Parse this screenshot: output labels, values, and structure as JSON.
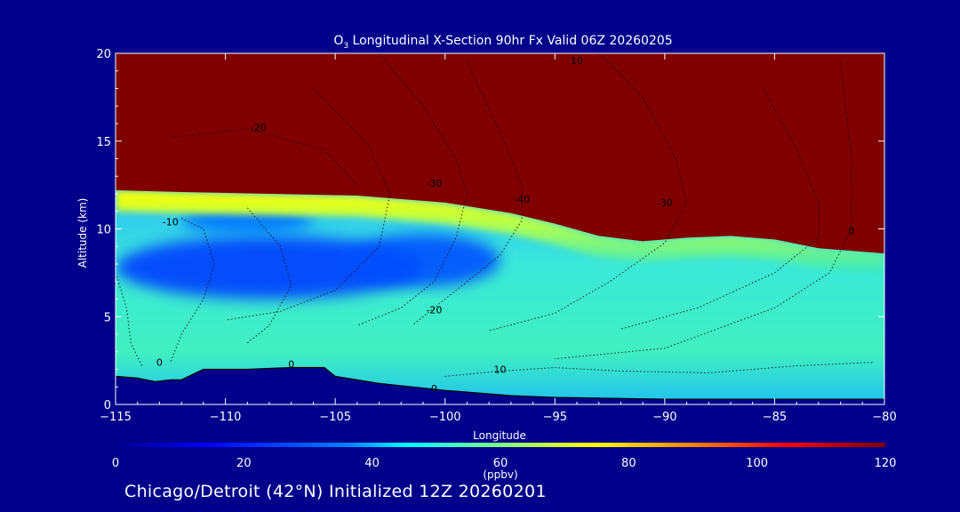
{
  "chart_data": {
    "type": "heatmap",
    "title_species": "O",
    "title_subscript": "3",
    "title_rest": " Longitudinal X-Section 90hr  Fx Valid 06Z 20260205",
    "xlabel": "Longitude",
    "ylabel": "Altitude (km)",
    "xlim": [
      -115,
      -80
    ],
    "ylim": [
      0,
      20
    ],
    "xticks": [
      -115,
      -110,
      -105,
      -100,
      -95,
      -90,
      -85,
      -80
    ],
    "xtick_labels": [
      "−115",
      "−110",
      "−105",
      "−100",
      "−95",
      "−90",
      "−85",
      "−80"
    ],
    "yticks": [
      0,
      5,
      10,
      15,
      20
    ],
    "ytick_labels": [
      "0",
      "5",
      "10",
      "15",
      "20"
    ],
    "colorbar": {
      "min": 0,
      "max": 120,
      "ticks": [
        0,
        20,
        40,
        60,
        80,
        100,
        120
      ],
      "tick_labels": [
        "0",
        "20",
        "40",
        "60",
        "80",
        "100",
        "120"
      ],
      "units": "(ppbv)"
    },
    "tropopause_km": [
      [
        -115,
        12.2
      ],
      [
        -112,
        12.1
      ],
      [
        -108,
        12.0
      ],
      [
        -104,
        11.9
      ],
      [
        -100,
        11.5
      ],
      [
        -97,
        10.9
      ],
      [
        -95,
        10.3
      ],
      [
        -93,
        9.6
      ],
      [
        -91,
        9.3
      ],
      [
        -89,
        9.5
      ],
      [
        -87,
        9.6
      ],
      [
        -85,
        9.4
      ],
      [
        -83,
        8.9
      ],
      [
        -80,
        8.6
      ]
    ],
    "terrain_km": [
      [
        -115,
        1.6
      ],
      [
        -114,
        1.5
      ],
      [
        -113.2,
        1.3
      ],
      [
        -112.5,
        1.4
      ],
      [
        -112,
        1.4
      ],
      [
        -111,
        2.0
      ],
      [
        -109,
        2.0
      ],
      [
        -107,
        2.1
      ],
      [
        -105.5,
        2.1
      ],
      [
        -105,
        1.6
      ],
      [
        -103,
        1.2
      ],
      [
        -100,
        0.8
      ],
      [
        -97,
        0.5
      ],
      [
        -95,
        0.4
      ],
      [
        -90,
        0.3
      ],
      [
        -80,
        0.3
      ]
    ],
    "low_ozone_regions": [
      {
        "lon": -108,
        "alt": 7.8,
        "rx": 7,
        "ry": 1.8,
        "value": 25
      },
      {
        "lon": -101,
        "alt": 8.2,
        "rx": 3.5,
        "ry": 1.5,
        "value": 28
      },
      {
        "lon": -109,
        "alt": 10.5,
        "rx": 3,
        "ry": 0.8,
        "value": 34
      }
    ],
    "contours": [
      {
        "label": "10",
        "lon": -94,
        "alt": 19.4
      },
      {
        "label": "-20",
        "lon": -108.5,
        "alt": 15.6
      },
      {
        "label": "-30",
        "lon": -100.5,
        "alt": 12.4
      },
      {
        "label": "-40",
        "lon": -96.5,
        "alt": 11.5
      },
      {
        "label": "-30",
        "lon": -90,
        "alt": 11.3
      },
      {
        "label": "-10",
        "lon": -112.5,
        "alt": 10.2
      },
      {
        "label": "0",
        "lon": -81.5,
        "alt": 9.7
      },
      {
        "label": "-20",
        "lon": -100.5,
        "alt": 5.2
      },
      {
        "label": "10",
        "lon": -97.5,
        "alt": 1.8
      },
      {
        "label": "0",
        "lon": -113,
        "alt": 2.2
      },
      {
        "label": "0",
        "lon": -107,
        "alt": 2.1
      },
      {
        "label": "0",
        "lon": -100.5,
        "alt": 0.7
      }
    ]
  },
  "footer": {
    "text": "Chicago/Detroit (42°N) Initialized 12Z 20260201"
  }
}
